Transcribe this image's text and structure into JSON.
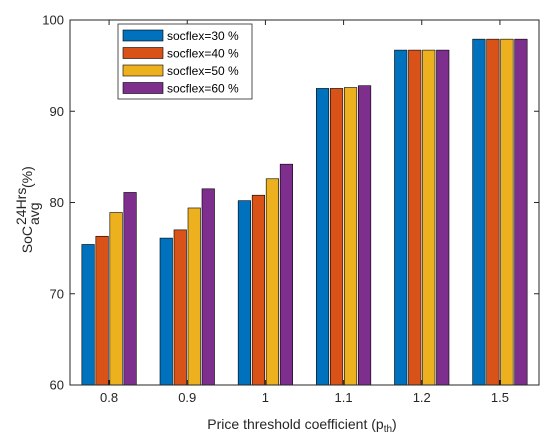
{
  "chart_data": {
    "type": "bar",
    "categories": [
      "0.8",
      "0.9",
      "1",
      "1.1",
      "1.2",
      "1.5"
    ],
    "series": [
      {
        "name": "socflex=30 %",
        "color": "#0072BD",
        "values": [
          75.4,
          76.1,
          80.2,
          92.5,
          96.7,
          97.9
        ]
      },
      {
        "name": "socflex=40 %",
        "color": "#D95319",
        "values": [
          76.3,
          77.0,
          80.8,
          92.5,
          96.7,
          97.9
        ]
      },
      {
        "name": "socflex=50 %",
        "color": "#EDB120",
        "values": [
          78.9,
          79.4,
          82.6,
          92.6,
          96.7,
          97.9
        ]
      },
      {
        "name": "socflex=60 %",
        "color": "#7E2F8E",
        "values": [
          81.1,
          81.5,
          84.2,
          92.8,
          96.7,
          97.9
        ]
      }
    ],
    "yticks": [
      "60",
      "70",
      "80",
      "90",
      "100"
    ],
    "ylim": [
      60,
      100
    ],
    "xlabel": {
      "main": "Price threshold coefficient (p",
      "sub": "th",
      "end": ")"
    },
    "ylabel": {
      "main": "SoC",
      "sup": "24Hrs",
      "sub": "avg",
      "end": " (%)"
    },
    "legend_position": "top-left",
    "grid": false
  }
}
